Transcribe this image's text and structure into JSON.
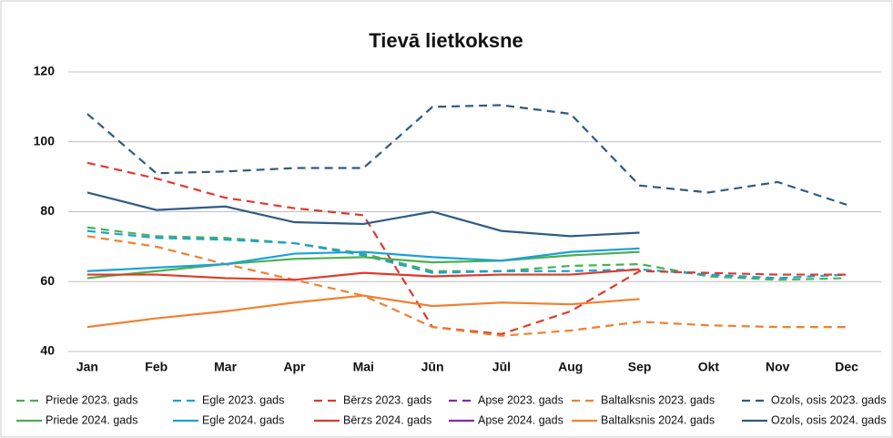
{
  "chart_data": {
    "type": "line",
    "title": "Tievā lietkoksne",
    "categories": [
      "Jan",
      "Feb",
      "Mar",
      "Apr",
      "Mai",
      "Jūn",
      "Jūl",
      "Aug",
      "Sep",
      "Okt",
      "Nov",
      "Dec"
    ],
    "ylim": [
      40,
      120
    ],
    "yticks": [
      40,
      60,
      80,
      100,
      120
    ],
    "grid": true,
    "legend": "bottom",
    "series": [
      {
        "name": "Priede 2023. gads",
        "color": "#4caf50",
        "style": "dashed",
        "values": [
          75.5,
          73,
          72.5,
          71,
          68,
          63,
          63,
          64.5,
          65,
          61.5,
          60.5,
          61
        ]
      },
      {
        "name": "Egle 2023. gads",
        "color": "#1ba1d8",
        "style": "dashed",
        "values": [
          74.5,
          72.5,
          72,
          71,
          67.5,
          62.5,
          63,
          63,
          63.5,
          62,
          61,
          62
        ]
      },
      {
        "name": "Bērzs 2023. gads",
        "color": "#e0392b",
        "style": "dashed",
        "values": [
          94,
          89.5,
          84,
          81,
          79,
          47,
          45,
          51.5,
          63,
          62.5,
          62,
          62
        ]
      },
      {
        "name": "Apse 2023. gads",
        "color": "#8e24aa",
        "style": "dashed",
        "values": [
          null,
          null,
          null,
          null,
          null,
          null,
          null,
          null,
          null,
          null,
          null,
          null
        ]
      },
      {
        "name": "Baltalksnis 2023. gads",
        "color": "#f0812f",
        "style": "dashed",
        "values": [
          73,
          70,
          65,
          60.5,
          56,
          47,
          44.5,
          46,
          48.5,
          47.5,
          47,
          47
        ]
      },
      {
        "name": "Ozols, osis 2023. gads",
        "color": "#2e5b86",
        "style": "dashed",
        "values": [
          108,
          91,
          91.5,
          92.5,
          92.5,
          110,
          110.5,
          108,
          87.5,
          85.5,
          88.5,
          82
        ]
      },
      {
        "name": "Priede 2024. gads",
        "color": "#4caf50",
        "style": "solid",
        "values": [
          61,
          63,
          65,
          66.5,
          67,
          65.5,
          66,
          67.5,
          68.5,
          null,
          null,
          null
        ]
      },
      {
        "name": "Egle 2024. gads",
        "color": "#1ba1d8",
        "style": "solid",
        "values": [
          63,
          64,
          65,
          68,
          68.5,
          67,
          66,
          68.5,
          69.5,
          null,
          null,
          null
        ]
      },
      {
        "name": "Bērzs 2024. gads",
        "color": "#e0392b",
        "style": "solid",
        "values": [
          62,
          62,
          61,
          60.5,
          62.5,
          61.5,
          62,
          62,
          63.5,
          null,
          null,
          null
        ]
      },
      {
        "name": "Apse 2024. gads",
        "color": "#8e24aa",
        "style": "solid",
        "values": [
          null,
          null,
          null,
          null,
          null,
          null,
          null,
          null,
          null,
          null,
          null,
          null
        ]
      },
      {
        "name": "Baltalksnis 2024. gads",
        "color": "#f0812f",
        "style": "solid",
        "values": [
          47,
          49.5,
          51.5,
          54,
          56,
          53,
          54,
          53.5,
          55,
          null,
          null,
          null
        ]
      },
      {
        "name": "Ozols, osis 2024. gads",
        "color": "#2e5b86",
        "style": "solid",
        "values": [
          85.5,
          80.5,
          81.5,
          77,
          76.5,
          80,
          74.5,
          73,
          74,
          null,
          null,
          null
        ]
      }
    ]
  }
}
